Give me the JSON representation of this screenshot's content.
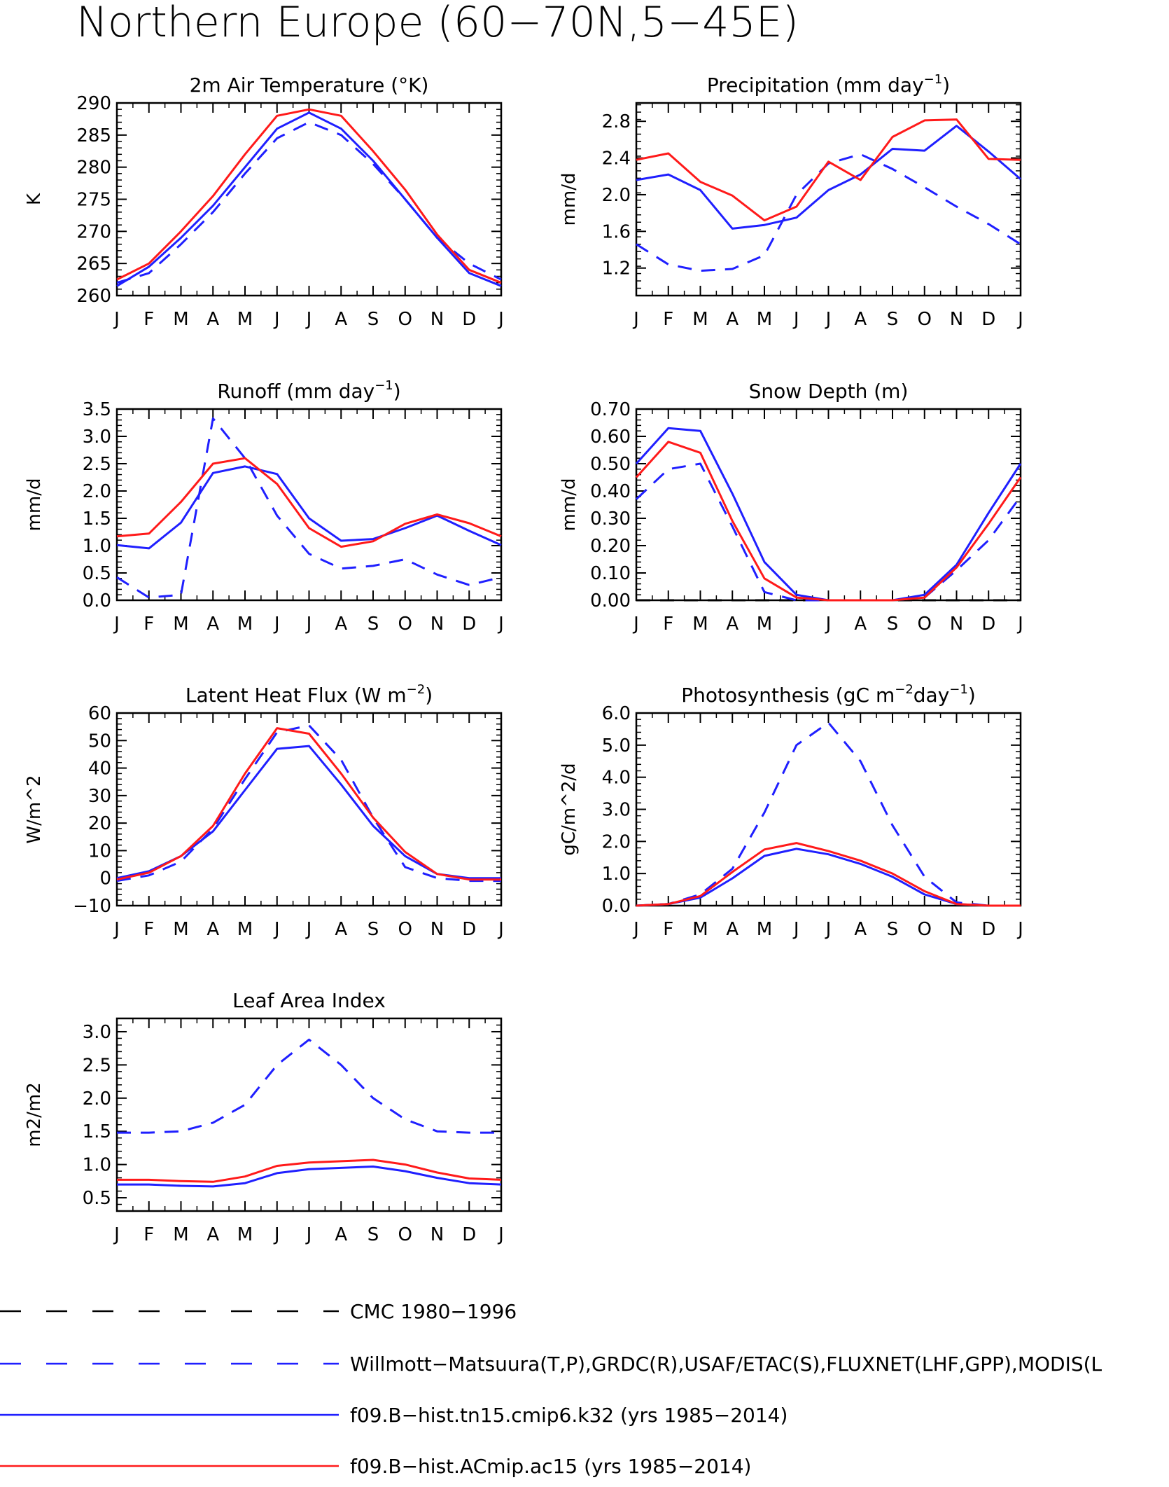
{
  "title": "Northern Europe (60−70N,5−45E)",
  "colors": {
    "observed": "#1f1fff",
    "model_tn15": "#1f1fff",
    "model_ac15": "#ff1a1a",
    "cmc": "#000000"
  },
  "legend": [
    {
      "label": "CMC 1980−1996",
      "color": "#000000",
      "dash": true
    },
    {
      "label": "Willmott−Matsuura(T,P),GRDC(R),USAF/ETAC(S),FLUXNET(LHF,GPP),MODIS(L",
      "color": "#1f1fff",
      "dash": true
    },
    {
      "label": "f09.B−hist.tn15.cmip6.k32 (yrs 1985−2014)",
      "color": "#1f1fff",
      "dash": false
    },
    {
      "label": "f09.B−hist.ACmip.ac15 (yrs 1985−2014)",
      "color": "#ff1a1a",
      "dash": false
    }
  ],
  "chart_data": [
    {
      "type": "line",
      "title": "2m Air Temperature (°K)",
      "ylabel": "K",
      "categories": [
        "J",
        "F",
        "M",
        "A",
        "M",
        "J",
        "J",
        "A",
        "S",
        "O",
        "N",
        "D",
        "J"
      ],
      "ylim": [
        260,
        290
      ],
      "yticks": [
        260,
        265,
        270,
        275,
        280,
        285,
        290
      ],
      "ytick_labels": [
        "260",
        "265",
        "270",
        "275",
        "280",
        "285",
        "290"
      ],
      "series": [
        {
          "role": "obs",
          "values": [
            262.0,
            263.5,
            268.0,
            273.0,
            279.0,
            284.5,
            287.0,
            285.0,
            280.5,
            275.0,
            269.0,
            265.0,
            262.5
          ]
        },
        {
          "role": "tn15",
          "values": [
            261.5,
            264.5,
            269.0,
            274.0,
            280.0,
            286.0,
            288.5,
            286.0,
            281.0,
            275.0,
            269.0,
            263.5,
            261.5
          ]
        },
        {
          "role": "ac15",
          "values": [
            262.5,
            265.0,
            270.0,
            275.5,
            282.0,
            288.0,
            289.0,
            288.0,
            282.5,
            276.5,
            269.5,
            264.0,
            262.0
          ]
        }
      ]
    },
    {
      "type": "line",
      "title": "Precipitation (mm day",
      "title_sup": "−1",
      "title_end": ")",
      "ylabel": "mm/d",
      "categories": [
        "J",
        "F",
        "M",
        "A",
        "M",
        "J",
        "J",
        "A",
        "S",
        "O",
        "N",
        "D",
        "J"
      ],
      "ylim": [
        0.9,
        3.0
      ],
      "yticks": [
        1.2,
        1.6,
        2.0,
        2.4,
        2.8
      ],
      "ytick_labels": [
        "1.2",
        "1.6",
        "2.0",
        "2.4",
        "2.8"
      ],
      "series": [
        {
          "role": "obs",
          "values": [
            1.46,
            1.24,
            1.17,
            1.19,
            1.34,
            2.0,
            2.34,
            2.44,
            2.28,
            2.08,
            1.87,
            1.68,
            1.46
          ]
        },
        {
          "role": "tn15",
          "values": [
            2.16,
            2.22,
            2.05,
            1.63,
            1.67,
            1.75,
            2.05,
            2.22,
            2.5,
            2.48,
            2.75,
            2.47,
            2.17
          ]
        },
        {
          "role": "ac15",
          "values": [
            2.38,
            2.45,
            2.14,
            1.99,
            1.72,
            1.87,
            2.36,
            2.16,
            2.63,
            2.81,
            2.82,
            2.39,
            2.38
          ]
        }
      ]
    },
    {
      "type": "line",
      "title": "Runoff (mm day",
      "title_sup": "−1",
      "title_end": ")",
      "ylabel": "mm/d",
      "categories": [
        "J",
        "F",
        "M",
        "A",
        "M",
        "J",
        "J",
        "A",
        "S",
        "O",
        "N",
        "D",
        "J"
      ],
      "ylim": [
        0,
        3.5
      ],
      "yticks": [
        0,
        0.5,
        1.0,
        1.5,
        2.0,
        2.5,
        3.0,
        3.5
      ],
      "ytick_labels": [
        "0.0",
        "0.5",
        "1.0",
        "1.5",
        "2.0",
        "2.5",
        "3.0",
        "3.5"
      ],
      "series": [
        {
          "role": "obs",
          "values": [
            0.42,
            0.05,
            0.1,
            3.33,
            2.6,
            1.55,
            0.85,
            0.58,
            0.63,
            0.75,
            0.47,
            0.28,
            0.42
          ]
        },
        {
          "role": "tn15",
          "values": [
            1.01,
            0.95,
            1.42,
            2.33,
            2.45,
            2.31,
            1.5,
            1.09,
            1.12,
            1.32,
            1.55,
            1.27,
            1.01
          ]
        },
        {
          "role": "ac15",
          "values": [
            1.17,
            1.22,
            1.8,
            2.5,
            2.6,
            2.13,
            1.32,
            0.98,
            1.08,
            1.4,
            1.57,
            1.41,
            1.17
          ]
        }
      ]
    },
    {
      "type": "line",
      "title": "Snow Depth (m)",
      "ylabel": "mm/d",
      "categories": [
        "J",
        "F",
        "M",
        "A",
        "M",
        "J",
        "J",
        "A",
        "S",
        "O",
        "N",
        "D",
        "J"
      ],
      "ylim": [
        0,
        0.7
      ],
      "yticks": [
        0,
        0.1,
        0.2,
        0.3,
        0.4,
        0.5,
        0.6,
        0.7
      ],
      "ytick_labels": [
        "0.00",
        "0.10",
        "0.20",
        "0.30",
        "0.40",
        "0.50",
        "0.60",
        "0.70"
      ],
      "series": [
        {
          "role": "cmc",
          "values": [
            0,
            0,
            0,
            0,
            0,
            0,
            0,
            0,
            0,
            0,
            0,
            0,
            0
          ]
        },
        {
          "role": "obs",
          "values": [
            0.37,
            0.48,
            0.5,
            0.27,
            0.03,
            0.0,
            0.0,
            0.0,
            0.0,
            0.01,
            0.11,
            0.22,
            0.38
          ]
        },
        {
          "role": "tn15",
          "values": [
            0.5,
            0.63,
            0.62,
            0.39,
            0.14,
            0.02,
            0.0,
            0.0,
            0.0,
            0.02,
            0.13,
            0.32,
            0.5
          ]
        },
        {
          "role": "ac15",
          "values": [
            0.45,
            0.58,
            0.54,
            0.29,
            0.08,
            0.01,
            0.0,
            0.0,
            0.0,
            0.01,
            0.12,
            0.28,
            0.45
          ]
        }
      ]
    },
    {
      "type": "line",
      "title": "Latent Heat Flux (W m",
      "title_sup": "−2",
      "title_end": ")",
      "ylabel": "W/m^2",
      "categories": [
        "J",
        "F",
        "M",
        "A",
        "M",
        "J",
        "J",
        "A",
        "S",
        "O",
        "N",
        "D",
        "J"
      ],
      "ylim": [
        -10,
        60
      ],
      "yticks": [
        -10,
        0,
        10,
        20,
        30,
        40,
        50,
        60
      ],
      "ytick_labels": [
        "−10",
        "0",
        "10",
        "20",
        "30",
        "40",
        "50",
        "60"
      ],
      "series": [
        {
          "role": "obs",
          "values": [
            -1.0,
            1.0,
            6.0,
            18.0,
            36.0,
            53.0,
            55.5,
            43.0,
            22.0,
            4.0,
            0.0,
            -1.0,
            -1.0
          ]
        },
        {
          "role": "tn15",
          "values": [
            0.0,
            2.5,
            8.0,
            17.0,
            32.0,
            47.0,
            48.0,
            34.0,
            19.0,
            8.0,
            1.5,
            0.0,
            0.0
          ]
        },
        {
          "role": "ac15",
          "values": [
            -0.5,
            2.0,
            8.0,
            19.0,
            38.0,
            54.5,
            52.5,
            38.0,
            22.0,
            9.5,
            1.5,
            -0.5,
            -0.5
          ]
        }
      ]
    },
    {
      "type": "line",
      "title": "Photosynthesis (gC m",
      "title_sup": "−2",
      "title_mid": "day",
      "title_sup2": "−1",
      "title_end": ")",
      "ylabel": "gC/m^2/d",
      "categories": [
        "J",
        "F",
        "M",
        "A",
        "M",
        "J",
        "J",
        "A",
        "S",
        "O",
        "N",
        "D",
        "J"
      ],
      "ylim": [
        0,
        6.0
      ],
      "yticks": [
        0,
        1.0,
        2.0,
        3.0,
        4.0,
        5.0,
        6.0
      ],
      "ytick_labels": [
        "0.0",
        "1.0",
        "2.0",
        "3.0",
        "4.0",
        "5.0",
        "6.0"
      ],
      "series": [
        {
          "role": "obs",
          "values": [
            0.0,
            0.05,
            0.35,
            1.15,
            2.9,
            5.0,
            5.7,
            4.5,
            2.5,
            0.9,
            0.1,
            0.0,
            0.0
          ]
        },
        {
          "role": "tn15",
          "values": [
            0.0,
            0.05,
            0.25,
            0.85,
            1.55,
            1.77,
            1.6,
            1.3,
            0.9,
            0.35,
            0.05,
            0.0,
            0.0
          ]
        },
        {
          "role": "ac15",
          "values": [
            0.0,
            0.05,
            0.3,
            1.05,
            1.75,
            1.95,
            1.7,
            1.4,
            1.0,
            0.45,
            0.05,
            0.0,
            0.0
          ]
        }
      ]
    },
    {
      "type": "line",
      "title": "Leaf Area Index",
      "ylabel": "m2/m2",
      "categories": [
        "J",
        "F",
        "M",
        "A",
        "M",
        "J",
        "J",
        "A",
        "S",
        "O",
        "N",
        "D",
        "J"
      ],
      "ylim": [
        0.3,
        3.2
      ],
      "yticks": [
        0.5,
        1.0,
        1.5,
        2.0,
        2.5,
        3.0
      ],
      "ytick_labels": [
        "0.5",
        "1.0",
        "1.5",
        "2.0",
        "2.5",
        "3.0"
      ],
      "series": [
        {
          "role": "obs",
          "values": [
            1.48,
            1.48,
            1.5,
            1.63,
            1.9,
            2.5,
            2.88,
            2.5,
            2.0,
            1.68,
            1.5,
            1.48,
            1.48
          ]
        },
        {
          "role": "tn15",
          "values": [
            0.7,
            0.7,
            0.68,
            0.67,
            0.72,
            0.87,
            0.93,
            0.95,
            0.97,
            0.9,
            0.8,
            0.72,
            0.7
          ]
        },
        {
          "role": "ac15",
          "values": [
            0.77,
            0.77,
            0.75,
            0.74,
            0.82,
            0.98,
            1.03,
            1.05,
            1.07,
            1.0,
            0.88,
            0.79,
            0.77
          ]
        }
      ]
    }
  ]
}
